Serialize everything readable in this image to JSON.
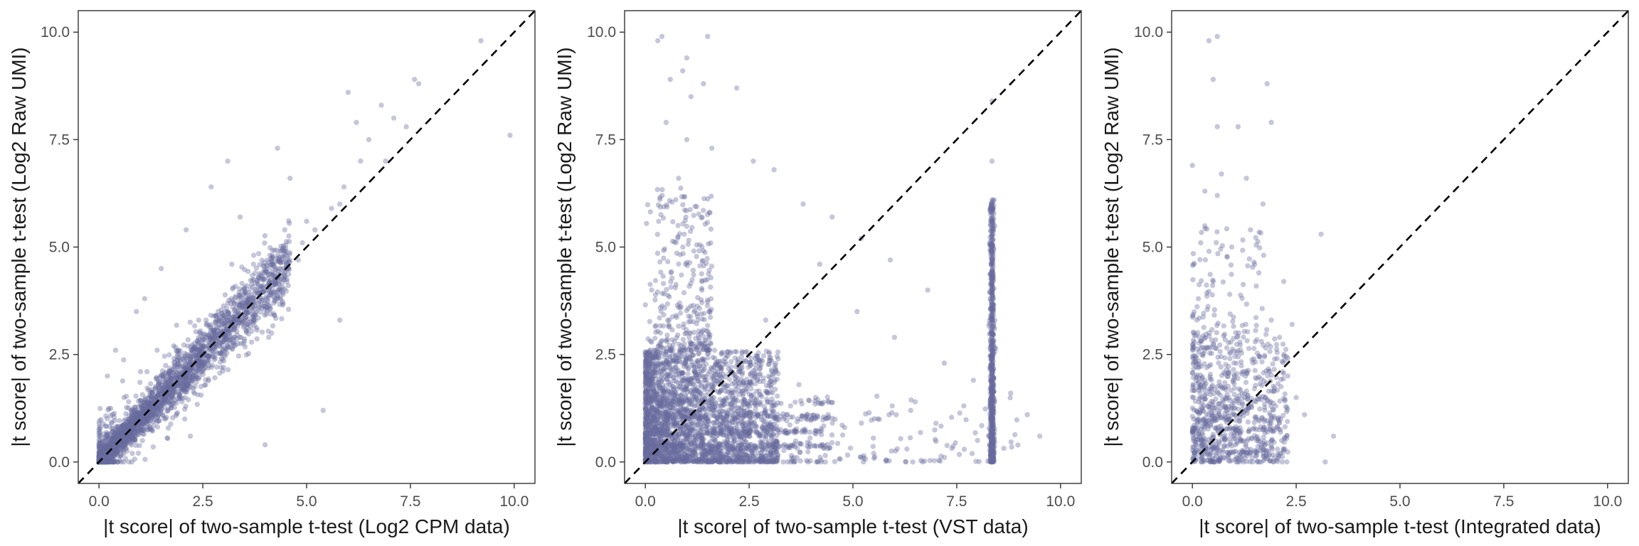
{
  "style": {
    "point_color": "#6a6c9e",
    "point_opacity": 0.38,
    "reference_line_color": "#000000",
    "reference_line": "dashed identity line y = x",
    "grid": false,
    "legend": "none"
  },
  "chart_data": [
    {
      "type": "scatter",
      "xlabel": "|t score| of two-sample t-test (Log2 CPM data)",
      "ylabel": "|t score| of two-sample t-test (Log2 Raw UMI)",
      "xlim": [
        -0.5,
        10.5
      ],
      "ylim": [
        -0.5,
        10.5
      ],
      "xticks": [
        "0.0",
        "2.5",
        "5.0",
        "7.5",
        "10.0"
      ],
      "yticks": [
        "0.0",
        "2.5",
        "5.0",
        "7.5",
        "10.0"
      ],
      "reference_line": "y = x",
      "points": [
        [
          9.2,
          9.8
        ],
        [
          9.9,
          7.6
        ],
        [
          7.6,
          8.9
        ],
        [
          7.7,
          8.8
        ],
        [
          7.4,
          7.8
        ],
        [
          7.1,
          8.0
        ],
        [
          6.9,
          7.0
        ],
        [
          6.8,
          8.3
        ],
        [
          6.5,
          7.5
        ],
        [
          6.2,
          7.9
        ],
        [
          6.0,
          8.6
        ],
        [
          6.3,
          7.0
        ],
        [
          5.9,
          6.4
        ],
        [
          5.8,
          6.0
        ],
        [
          5.6,
          5.9
        ],
        [
          5.2,
          5.4
        ],
        [
          5.0,
          5.6
        ],
        [
          4.9,
          5.1
        ],
        [
          4.6,
          6.6
        ],
        [
          4.8,
          4.7
        ],
        [
          4.3,
          7.3
        ],
        [
          4.5,
          4.9
        ],
        [
          4.0,
          3.7
        ],
        [
          3.1,
          7.0
        ],
        [
          3.4,
          5.7
        ],
        [
          2.7,
          6.4
        ],
        [
          2.1,
          5.4
        ],
        [
          1.5,
          4.5
        ],
        [
          1.1,
          3.8
        ],
        [
          2.2,
          0.6
        ],
        [
          4.0,
          0.4
        ],
        [
          5.4,
          1.2
        ],
        [
          5.8,
          3.3
        ],
        [
          0.2,
          2.0
        ],
        [
          0.4,
          2.6
        ],
        [
          0.9,
          3.5
        ],
        [
          1.6,
          1.0
        ],
        [
          1.4,
          2.6
        ],
        [
          3.0,
          2.2
        ],
        [
          2.4,
          3.3
        ],
        [
          3.6,
          3.2
        ],
        [
          4.2,
          4.3
        ],
        [
          3.2,
          4.6
        ],
        [
          4.4,
          4.0
        ],
        [
          2.0,
          1.4
        ],
        [
          1.0,
          2.1
        ],
        [
          0.6,
          1.5
        ],
        [
          1.8,
          2.7
        ],
        [
          0.3,
          0.9
        ],
        [
          0.8,
          0.2
        ]
      ],
      "dense_band": {
        "x_range": [
          0,
          4.6
        ],
        "relation": "y approx equal to x",
        "spread": 0.35
      }
    },
    {
      "type": "scatter",
      "xlabel": "|t score| of two-sample t-test (VST data)",
      "ylabel": "|t score| of two-sample t-test (Log2 Raw UMI)",
      "xlim": [
        -0.5,
        10.5
      ],
      "ylim": [
        -0.5,
        10.5
      ],
      "xticks": [
        "0.0",
        "2.5",
        "5.0",
        "7.5",
        "10.0"
      ],
      "yticks": [
        "0.0",
        "2.5",
        "5.0",
        "7.5",
        "10.0"
      ],
      "reference_line": "y = x",
      "points": [
        [
          0.3,
          9.8
        ],
        [
          0.4,
          9.9
        ],
        [
          1.5,
          9.9
        ],
        [
          1.0,
          9.4
        ],
        [
          0.9,
          9.1
        ],
        [
          0.6,
          8.9
        ],
        [
          1.4,
          8.8
        ],
        [
          1.1,
          8.5
        ],
        [
          2.2,
          8.7
        ],
        [
          0.5,
          7.9
        ],
        [
          1.0,
          7.5
        ],
        [
          1.6,
          7.3
        ],
        [
          2.6,
          7.0
        ],
        [
          0.8,
          6.6
        ],
        [
          3.1,
          6.8
        ],
        [
          3.8,
          6.0
        ],
        [
          4.5,
          5.7
        ],
        [
          5.2,
          5.2
        ],
        [
          4.2,
          4.6
        ],
        [
          5.9,
          4.7
        ],
        [
          6.8,
          4.0
        ],
        [
          5.1,
          3.5
        ],
        [
          6.0,
          2.9
        ],
        [
          7.2,
          2.3
        ],
        [
          7.9,
          1.9
        ],
        [
          8.8,
          1.6
        ],
        [
          9.2,
          1.1
        ],
        [
          9.5,
          0.6
        ],
        [
          6.5,
          1.4
        ],
        [
          5.6,
          1.0
        ],
        [
          4.8,
          0.8
        ],
        [
          7.0,
          0.9
        ],
        [
          8.0,
          0.5
        ],
        [
          6.3,
          0.3
        ],
        [
          5.5,
          0.2
        ],
        [
          3.7,
          1.8
        ],
        [
          3.2,
          2.4
        ],
        [
          4.1,
          1.5
        ],
        [
          2.9,
          3.3
        ],
        [
          3.4,
          1.1
        ],
        [
          8.35,
          8.4
        ],
        [
          8.35,
          7.0
        ],
        [
          8.35,
          6.0
        ],
        [
          8.35,
          5.5
        ]
      ],
      "dense_cluster": {
        "x_range": [
          0,
          3.2
        ],
        "y_range": [
          0,
          2.6
        ]
      },
      "vertical_stripe": {
        "x": 8.35,
        "y_range": [
          0,
          6.1
        ]
      }
    },
    {
      "type": "scatter",
      "xlabel": "|t score| of two-sample t-test (Integrated data)",
      "ylabel": "|t score| of two-sample t-test (Log2 Raw UMI)",
      "xlim": [
        -0.5,
        10.5
      ],
      "ylim": [
        -0.5,
        10.5
      ],
      "xticks": [
        "0.0",
        "2.5",
        "5.0",
        "7.5",
        "10.0"
      ],
      "yticks": [
        "0.0",
        "2.5",
        "5.0",
        "7.5",
        "10.0"
      ],
      "reference_line": "y = x",
      "points": [
        [
          0.4,
          9.8
        ],
        [
          0.6,
          9.9
        ],
        [
          0.5,
          8.9
        ],
        [
          1.8,
          8.8
        ],
        [
          1.9,
          7.9
        ],
        [
          0.6,
          7.8
        ],
        [
          1.1,
          7.8
        ],
        [
          0.7,
          6.7
        ],
        [
          0.0,
          6.9
        ],
        [
          0.3,
          6.3
        ],
        [
          0.6,
          6.2
        ],
        [
          1.3,
          6.6
        ],
        [
          1.7,
          6.0
        ],
        [
          1.4,
          5.4
        ],
        [
          3.1,
          5.3
        ],
        [
          0.2,
          5.1
        ],
        [
          0.4,
          4.9
        ],
        [
          1.5,
          4.6
        ],
        [
          1.6,
          4.4
        ],
        [
          2.2,
          4.2
        ],
        [
          0.5,
          4.2
        ],
        [
          0.9,
          3.9
        ],
        [
          2.4,
          3.2
        ],
        [
          2.1,
          2.9
        ],
        [
          3.4,
          0.6
        ],
        [
          2.7,
          1.1
        ],
        [
          3.2,
          0.0
        ],
        [
          2.5,
          1.5
        ],
        [
          2.3,
          2.0
        ],
        [
          1.9,
          3.3
        ]
      ],
      "dense_cluster": {
        "x_range": [
          0,
          2.3
        ],
        "y_range": [
          0,
          3.0
        ]
      }
    }
  ]
}
